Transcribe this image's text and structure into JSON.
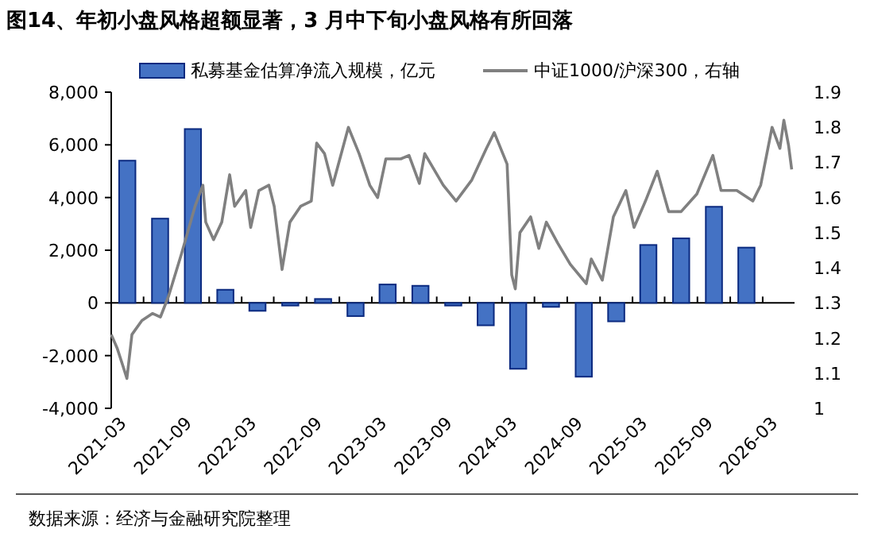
{
  "chart_data": {
    "type": "bar",
    "title": "图14、年初小盘风格超额显著，3 月中下旬小盘风格有所回落",
    "series": [
      {
        "name": "私募基金估算净流入规模，亿元",
        "color": "#4472c4",
        "x": [
          "2021-03",
          "2021-06",
          "2021-09",
          "2021-12",
          "2022-03",
          "2022-06",
          "2022-09",
          "2022-12",
          "2023-03",
          "2023-06",
          "2023-09",
          "2023-12",
          "2024-03",
          "2024-06",
          "2024-09",
          "2024-12",
          "2025-03",
          "2025-06",
          "2025-09",
          "2025-12"
        ],
        "values": [
          5400,
          3200,
          6600,
          500,
          -300,
          -100,
          150,
          -500,
          700,
          650,
          -100,
          -850,
          -2500,
          -150,
          -2800,
          -700,
          2200,
          2450,
          3650,
          2100
        ]
      },
      {
        "name": "中证1000/沪深300，右轴",
        "type": "line",
        "axis": "y2",
        "color": "#808080",
        "x": [
          "2021-01-15",
          "2021-02-01",
          "2021-02-17",
          "2021-02-28",
          "2021-03-14",
          "2021-04-11",
          "2021-05-11",
          "2021-06-02",
          "2021-06-25",
          "2021-07-31",
          "2021-09-07",
          "2021-09-29",
          "2021-10-07",
          "2021-10-29",
          "2021-11-21",
          "2021-12-13",
          "2021-12-27",
          "2022-01-27",
          "2022-02-10",
          "2022-03-05",
          "2022-04-02",
          "2022-04-17",
          "2022-05-09",
          "2022-05-31",
          "2022-06-30",
          "2022-07-30",
          "2022-08-14",
          "2022-09-05",
          "2022-09-28",
          "2022-11-11",
          "2022-12-11",
          "2023-01-10",
          "2023-02-01",
          "2023-02-24",
          "2023-04-07",
          "2023-04-30",
          "2023-05-29",
          "2023-06-13",
          "2023-08-04",
          "2023-09-09",
          "2023-10-23",
          "2023-12-03",
          "2023-12-25",
          "2024-01-30",
          "2024-02-12",
          "2024-02-22",
          "2024-03-06",
          "2024-04-05",
          "2024-04-28",
          "2024-05-19",
          "2024-06-20",
          "2024-07-25",
          "2024-09-08",
          "2024-09-22",
          "2024-10-23",
          "2024-11-23",
          "2024-12-28",
          "2025-01-20",
          "2025-02-21",
          "2025-03-26",
          "2025-04-27",
          "2025-06-01",
          "2025-07-15",
          "2025-08-29",
          "2025-09-21",
          "2025-11-04",
          "2025-12-19",
          "2026-01-10",
          "2026-02-11",
          "2026-03-05",
          "2026-03-16",
          "2026-03-29",
          "2026-04-07"
        ],
        "values": [
          1.21,
          1.17,
          1.12,
          1.085,
          1.21,
          1.25,
          1.27,
          1.26,
          1.32,
          1.44,
          1.575,
          1.635,
          1.53,
          1.48,
          1.53,
          1.665,
          1.575,
          1.62,
          1.515,
          1.62,
          1.635,
          1.575,
          1.395,
          1.53,
          1.575,
          1.59,
          1.755,
          1.725,
          1.635,
          1.8,
          1.725,
          1.635,
          1.6,
          1.71,
          1.71,
          1.72,
          1.64,
          1.725,
          1.635,
          1.59,
          1.65,
          1.74,
          1.785,
          1.695,
          1.38,
          1.34,
          1.5,
          1.545,
          1.455,
          1.53,
          1.47,
          1.41,
          1.355,
          1.425,
          1.365,
          1.545,
          1.62,
          1.515,
          1.59,
          1.675,
          1.56,
          1.56,
          1.61,
          1.72,
          1.62,
          1.62,
          1.59,
          1.635,
          1.8,
          1.74,
          1.82,
          1.75,
          1.68
        ]
      }
    ],
    "xlim": [
      "2021-01-15",
      "2026-04-15"
    ],
    "xticks": [
      "2021-03",
      "2021-09",
      "2022-03",
      "2022-09",
      "2023-03",
      "2023-09",
      "2024-03",
      "2024-09",
      "2025-03",
      "2025-09",
      "2026-03"
    ],
    "ylim": [
      -4000,
      8000
    ],
    "yticks": [
      {
        "value": -4000,
        "label": "-4,000"
      },
      {
        "value": -2000,
        "label": "-2,000"
      },
      0,
      {
        "value": 2000,
        "label": "2,000"
      },
      {
        "value": 4000,
        "label": "4,000"
      },
      {
        "value": 6000,
        "label": "6,000"
      },
      {
        "value": 8000,
        "label": "8,000"
      }
    ],
    "y2lim": [
      1,
      1.9
    ],
    "y2ticks": [
      1,
      1.1,
      1.2,
      1.3,
      1.4,
      1.5,
      1.6,
      1.7,
      1.8,
      1.9
    ],
    "legend": "top",
    "annotations": [
      "数据来源：经济与金融研究院整理"
    ]
  }
}
